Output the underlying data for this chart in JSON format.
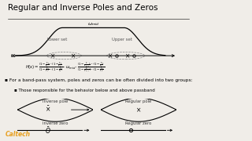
{
  "title": "Regular and Inverse Poles and Zeros",
  "background_color": "#f0ede8",
  "title_fontsize": 7.5,
  "bullet1": "For a band-pass system, poles and zeros can be often divided into two groups:",
  "bullet2": "Those responsible for the behavior below and above passband",
  "caltech_color": "#e8a020",
  "caltech_label": "Caltech"
}
